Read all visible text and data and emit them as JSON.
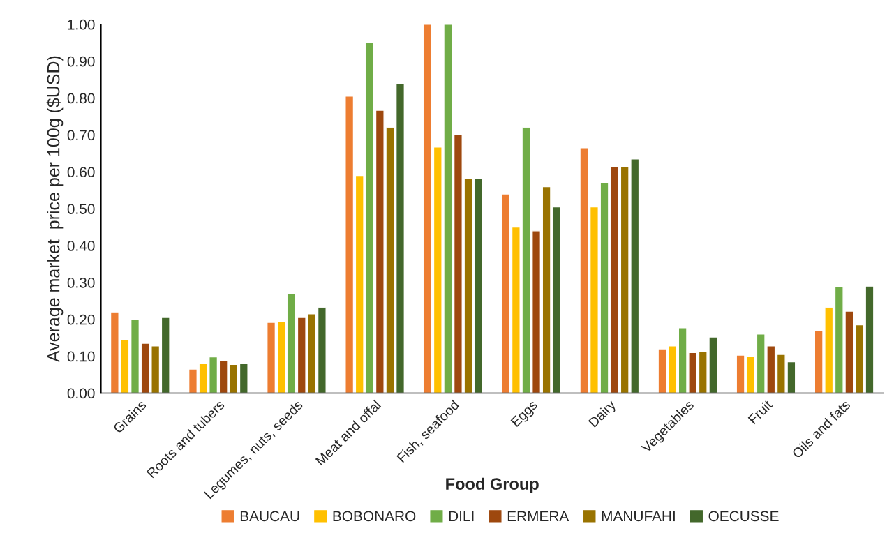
{
  "chart_data": {
    "type": "bar",
    "xlabel": "Food Group",
    "ylabel": "Average market  price per 100g ($USD)",
    "categories": [
      "Grains",
      "Roots and tubers",
      "Legumes, nuts, seeds",
      "Meat and offal",
      "Fish, seafood",
      "Eggs",
      "Dairy",
      "Vegetables",
      "Fruit",
      "Oils and fats"
    ],
    "series": [
      {
        "name": "BAUCAU",
        "color": "#ed7d31",
        "values": [
          0.22,
          0.065,
          0.192,
          0.805,
          1.0,
          0.54,
          0.665,
          0.12,
          0.103,
          0.17
        ]
      },
      {
        "name": "BOBONARO",
        "color": "#ffc000",
        "values": [
          0.145,
          0.08,
          0.195,
          0.59,
          0.667,
          0.45,
          0.505,
          0.128,
          0.1,
          0.232
        ]
      },
      {
        "name": "DILI",
        "color": "#70ad47",
        "values": [
          0.2,
          0.098,
          0.27,
          0.95,
          1.0,
          0.72,
          0.57,
          0.177,
          0.16,
          0.288
        ]
      },
      {
        "name": "ERMERA",
        "color": "#9e480e",
        "values": [
          0.135,
          0.088,
          0.205,
          0.767,
          0.7,
          0.44,
          0.615,
          0.11,
          0.128,
          0.222
        ]
      },
      {
        "name": "MANUFAHI",
        "color": "#997300",
        "values": [
          0.128,
          0.078,
          0.215,
          0.72,
          0.583,
          0.56,
          0.615,
          0.112,
          0.105,
          0.185
        ]
      },
      {
        "name": "OECUSSE",
        "color": "#43682b",
        "values": [
          0.205,
          0.08,
          0.232,
          0.84,
          0.583,
          0.505,
          0.635,
          0.152,
          0.085,
          0.29
        ]
      }
    ],
    "ylim": [
      0,
      1.0
    ],
    "yticks": [
      {
        "value": 0,
        "label": "0.00"
      },
      {
        "value": 0.1,
        "label": "0.10"
      },
      {
        "value": 0.2,
        "label": "0.20"
      },
      {
        "value": 0.3,
        "label": "0.30"
      },
      {
        "value": 0.4,
        "label": "0.40"
      },
      {
        "value": 0.5,
        "label": "0.50"
      },
      {
        "value": 0.6,
        "label": "0.60"
      },
      {
        "value": 0.7,
        "label": "0.70"
      },
      {
        "value": 0.8,
        "label": "0.80"
      },
      {
        "value": 0.9,
        "label": "0.90"
      },
      {
        "value": 1.0,
        "label": "1.00"
      }
    ],
    "grid": false,
    "legend": "bottom"
  }
}
